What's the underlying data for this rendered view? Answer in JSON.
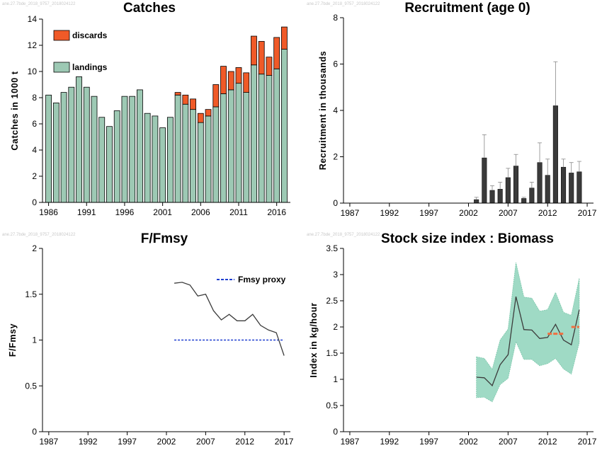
{
  "watermark": "ane.27.7bde_2018_9757_2018024122",
  "colors": {
    "landings": "#9dc9b4",
    "discards": "#f05a28",
    "recruit_bar": "#3a3a3a",
    "line": "#3c3c3c",
    "fmsy": "#1f3fd0",
    "ci_fill": "#9fdac5",
    "index_mean": "#f07040"
  },
  "chart_data": [
    {
      "id": "catches",
      "type": "bar",
      "title": "Catches",
      "ylabel": "Catches in 1000 t",
      "xlim": [
        1985.2,
        2017.8
      ],
      "ylim": [
        0,
        14
      ],
      "xticks": [
        1986,
        1991,
        1996,
        2001,
        2006,
        2011,
        2016
      ],
      "yticks": [
        0,
        2,
        4,
        6,
        8,
        10,
        12,
        14
      ],
      "legend": {
        "placement": "top-left",
        "items": [
          {
            "label": "discards",
            "color": "#f05a28"
          },
          {
            "label": "landings",
            "color": "#9dc9b4"
          }
        ]
      },
      "x": [
        1986,
        1987,
        1988,
        1989,
        1990,
        1991,
        1992,
        1993,
        1994,
        1995,
        1996,
        1997,
        1998,
        1999,
        2000,
        2001,
        2002,
        2003,
        2004,
        2005,
        2006,
        2007,
        2008,
        2009,
        2010,
        2011,
        2012,
        2013,
        2014,
        2015,
        2016,
        2017
      ],
      "series": [
        {
          "name": "landings",
          "values": [
            8.2,
            7.6,
            8.4,
            8.8,
            9.6,
            8.8,
            8.1,
            6.5,
            5.8,
            7.0,
            8.1,
            8.1,
            8.6,
            6.8,
            6.6,
            5.7,
            6.5,
            8.2,
            7.5,
            7.1,
            6.1,
            6.6,
            7.3,
            8.3,
            8.6,
            9.1,
            8.4,
            10.5,
            9.8,
            9.7,
            10.2,
            11.7
          ]
        },
        {
          "name": "discards",
          "values": [
            0,
            0,
            0,
            0,
            0,
            0,
            0,
            0,
            0,
            0,
            0,
            0,
            0,
            0,
            0,
            0,
            0,
            0.2,
            0.7,
            0.8,
            0.7,
            0.5,
            1.7,
            2.1,
            1.4,
            1.2,
            1.5,
            2.2,
            2.5,
            1.4,
            2.4,
            1.7
          ]
        }
      ]
    },
    {
      "id": "recruitment",
      "type": "bar",
      "title": "Recruitment (age 0)",
      "ylabel": "Recruitment in thousands",
      "xlim": [
        1986.2,
        2017.8
      ],
      "ylim": [
        0,
        8
      ],
      "xticks": [
        1987,
        1992,
        1997,
        2002,
        2007,
        2012,
        2017
      ],
      "yticks": [
        0,
        2,
        4,
        6,
        8
      ],
      "x": [
        2003,
        2004,
        2005,
        2006,
        2007,
        2008,
        2009,
        2010,
        2011,
        2012,
        2013,
        2014,
        2015,
        2016
      ],
      "values": [
        0.15,
        1.95,
        0.55,
        0.6,
        1.1,
        1.6,
        0.2,
        0.65,
        1.75,
        1.2,
        4.2,
        1.55,
        1.3,
        1.35
      ],
      "upper": [
        0.25,
        2.95,
        0.75,
        0.9,
        1.5,
        2.1,
        0.25,
        0.9,
        2.6,
        1.9,
        6.1,
        1.9,
        1.75,
        1.8
      ]
    },
    {
      "id": "ffmsy",
      "type": "line",
      "title": "F/Fmsy",
      "ylabel": "F/Fmsy",
      "xlim": [
        1986.2,
        2017.8
      ],
      "ylim": [
        0,
        2
      ],
      "xticks": [
        1987,
        1992,
        1997,
        2002,
        2007,
        2012,
        2017
      ],
      "yticks": [
        0,
        0.5,
        1,
        1.5,
        2
      ],
      "ytick_labels": [
        "0",
        "0.5",
        "1",
        "1.5",
        "2"
      ],
      "legend": {
        "placement": "top-right",
        "items": [
          {
            "label": "Fmsy proxy",
            "color": "#1f3fd0"
          }
        ]
      },
      "x": [
        2003,
        2004,
        2005,
        2006,
        2007,
        2008,
        2009,
        2010,
        2011,
        2012,
        2013,
        2014,
        2015,
        2016,
        2017
      ],
      "values": [
        1.62,
        1.63,
        1.6,
        1.48,
        1.5,
        1.32,
        1.22,
        1.28,
        1.21,
        1.21,
        1.28,
        1.16,
        1.11,
        1.08,
        0.83
      ],
      "reference": {
        "name": "Fmsy proxy",
        "value": 1.0,
        "x": [
          2003,
          2017
        ]
      }
    },
    {
      "id": "biomass",
      "type": "line",
      "title": "Stock size index : Biomass",
      "ylabel": "Index in kg/hour",
      "xlim": [
        1986.2,
        2017.8
      ],
      "ylim": [
        0,
        3.5
      ],
      "xticks": [
        1987,
        1992,
        1997,
        2002,
        2007,
        2012,
        2017
      ],
      "yticks": [
        0,
        0.5,
        1,
        1.5,
        2,
        2.5,
        3,
        3.5
      ],
      "ytick_labels": [
        "0",
        "0.5",
        "1",
        "1.5",
        "2",
        "2.5",
        "3",
        "3.5"
      ],
      "x": [
        2003,
        2004,
        2005,
        2006,
        2007,
        2008,
        2009,
        2010,
        2011,
        2012,
        2013,
        2014,
        2015,
        2016
      ],
      "values": [
        1.04,
        1.03,
        0.88,
        1.28,
        1.47,
        2.58,
        1.95,
        1.94,
        1.78,
        1.8,
        2.05,
        1.75,
        1.66,
        2.33
      ],
      "lower": [
        0.65,
        0.66,
        0.57,
        0.9,
        1.02,
        1.72,
        1.38,
        1.38,
        1.26,
        1.3,
        1.4,
        1.2,
        1.1,
        1.7
      ],
      "upper": [
        1.43,
        1.4,
        1.19,
        1.75,
        1.96,
        3.23,
        2.57,
        2.55,
        2.3,
        2.33,
        2.66,
        2.28,
        2.22,
        2.93
      ],
      "mean_segments": [
        {
          "x": [
            2012,
            2014
          ],
          "value": 1.87
        },
        {
          "x": [
            2015,
            2016
          ],
          "value": 2.0
        }
      ]
    }
  ]
}
